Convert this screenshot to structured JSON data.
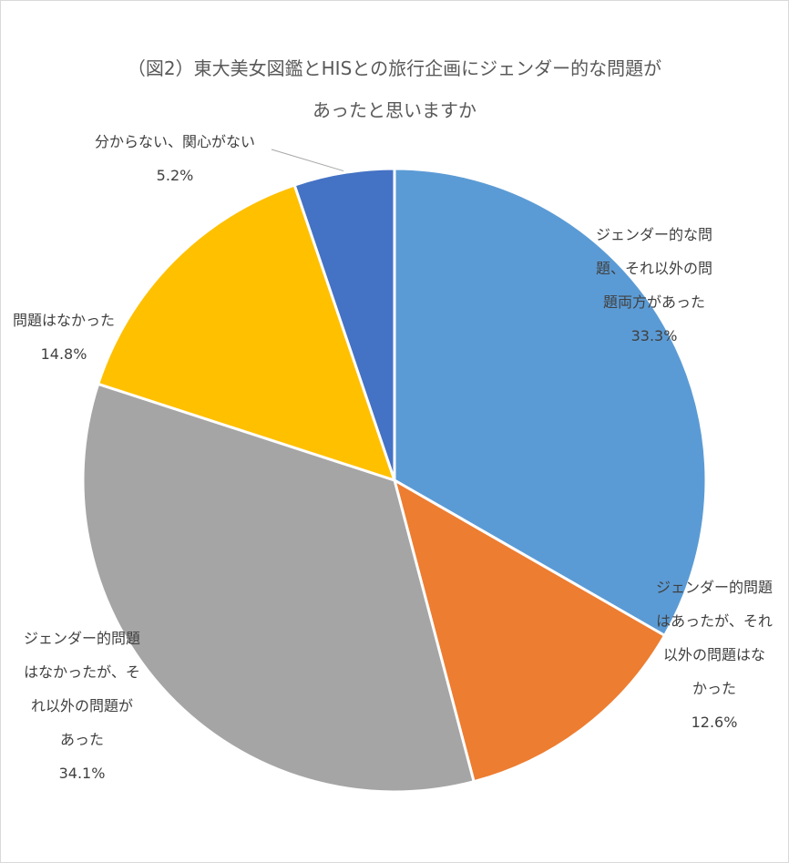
{
  "chart_data": {
    "type": "pie",
    "title": "（図2）東大美女図鑑とHISとの旅行企画にジェンダー的な問題があったと思いますか",
    "title_lines": [
      "（図2）東大美女図鑑とHISとの旅行企画にジェンダー的な問題が",
      "あったと思いますか"
    ],
    "slices": [
      {
        "label_lines": [
          "ジェンダー的な問",
          "題、それ以外の問",
          "題両方があった"
        ],
        "label": "ジェンダー的な問題、それ以外の問題両方があった",
        "value": 33.3,
        "value_text": "33.3%",
        "color": "#5B9BD5"
      },
      {
        "label_lines": [
          "ジェンダー的問題",
          "はあったが、それ",
          "以外の問題はな",
          "かった"
        ],
        "label": "ジェンダー的問題はあったが、それ以外の問題はなかった",
        "value": 12.6,
        "value_text": "12.6%",
        "color": "#ED7D31"
      },
      {
        "label_lines": [
          "ジェンダー的問題",
          "はなかったが、そ",
          "れ以外の問題が",
          "あった"
        ],
        "label": "ジェンダー的問題はなかったが、それ以外の問題があった",
        "value": 34.1,
        "value_text": "34.1%",
        "color": "#A5A5A5"
      },
      {
        "label_lines": [
          "問題はなかった"
        ],
        "label": "問題はなかった",
        "value": 14.8,
        "value_text": "14.8%",
        "color": "#FFC000"
      },
      {
        "label_lines": [
          "分からない、関心がない"
        ],
        "label": "分からない、関心がない",
        "value": 5.2,
        "value_text": "5.2%",
        "color": "#4472C4"
      }
    ],
    "start_angle_deg": 0,
    "direction": "clockwise",
    "legend": "none"
  }
}
